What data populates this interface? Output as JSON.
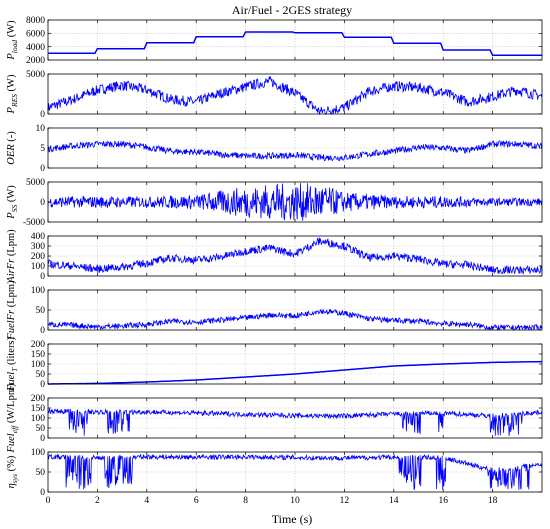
{
  "figure": {
    "title": "Air/Fuel - 2GES strategy",
    "xlabel": "Time (s)"
  },
  "chart_data": [
    {
      "type": "line",
      "ylabel_html": "P<sub>load</sub> (W)",
      "ylabel_main": "P",
      "ylabel_sub": "load",
      "ylabel_unit": " (W)",
      "xlim": [
        0,
        20
      ],
      "ylim": [
        2000,
        8000
      ],
      "yticks": [
        2000,
        4000,
        6000,
        8000
      ],
      "xticks": [
        0,
        2,
        4,
        6,
        8,
        10,
        12,
        14,
        16,
        18
      ],
      "color": "#0000ff",
      "series": [
        {
          "x": [
            0,
            1.9,
            2,
            3.9,
            4,
            5.9,
            6,
            7.9,
            8,
            9.9,
            10,
            11.9,
            12,
            13.9,
            14,
            15.9,
            16,
            17.9,
            18,
            20
          ],
          "y": [
            3000,
            3000,
            3700,
            3700,
            4600,
            4600,
            5500,
            5500,
            6200,
            6200,
            6100,
            6100,
            5400,
            5400,
            4500,
            4500,
            3500,
            3500,
            2700,
            2700
          ]
        }
      ]
    },
    {
      "type": "line",
      "ylabel_main": "P",
      "ylabel_sub": "RES",
      "ylabel_unit": " (W)",
      "xlim": [
        0,
        20
      ],
      "ylim": [
        0,
        5000
      ],
      "yticks": [
        0,
        5000
      ],
      "xticks": [
        0,
        2,
        4,
        6,
        8,
        10,
        12,
        14,
        16,
        18
      ],
      "color": "#0000ff",
      "series": [
        {
          "x": [
            0,
            1,
            2,
            3,
            4,
            5,
            6,
            7,
            8,
            9,
            10,
            11,
            12,
            13,
            14,
            15,
            16,
            17,
            18,
            19,
            20
          ],
          "y": [
            800,
            1800,
            3000,
            3600,
            3000,
            1800,
            1500,
            2600,
            3400,
            4100,
            2600,
            300,
            800,
            2800,
            3500,
            3300,
            2700,
            1500,
            2200,
            3000,
            2200
          ]
        }
      ],
      "noise": 650
    },
    {
      "type": "line",
      "ylabel_main": "OER",
      "ylabel_sub": "",
      "ylabel_unit": " (-)",
      "xlim": [
        0,
        20
      ],
      "ylim": [
        0,
        10
      ],
      "yticks": [
        0,
        5,
        10
      ],
      "xticks": [
        0,
        2,
        4,
        6,
        8,
        10,
        12,
        14,
        16,
        18
      ],
      "color": "#0000ff",
      "series": [
        {
          "x": [
            0,
            1,
            2,
            3,
            4,
            5,
            6,
            7,
            8,
            9,
            10,
            11,
            12,
            13,
            14,
            15,
            16,
            17,
            18,
            19,
            20
          ],
          "y": [
            4.8,
            5.5,
            6.0,
            6.0,
            5.2,
            4.2,
            4.0,
            3.4,
            3.0,
            3.0,
            3.2,
            2.6,
            2.6,
            3.5,
            4.2,
            5.2,
            5.0,
            4.3,
            6.0,
            6.0,
            5.4
          ]
        }
      ],
      "noise": 0.8
    },
    {
      "type": "line",
      "ylabel_main": "P",
      "ylabel_sub": "SS",
      "ylabel_unit": " (W)",
      "xlim": [
        0,
        20
      ],
      "ylim": [
        -5000,
        5000
      ],
      "yticks": [
        -5000,
        0,
        5000
      ],
      "xticks": [
        0,
        2,
        4,
        6,
        8,
        10,
        12,
        14,
        16,
        18
      ],
      "color": "#0000ff",
      "series": [
        {
          "x": [
            0,
            2,
            4,
            6,
            7.5,
            9,
            10,
            11,
            12,
            14,
            16,
            18,
            20
          ],
          "y": [
            0,
            0,
            0,
            0,
            0,
            0,
            0,
            0,
            0,
            0,
            0,
            0,
            0
          ]
        }
      ],
      "noise_profile": {
        "x": [
          0,
          2,
          4,
          6,
          7.5,
          9,
          10,
          11,
          12,
          14,
          16,
          18,
          20
        ],
        "amp": [
          1300,
          1500,
          1400,
          1800,
          3500,
          4500,
          4800,
          4600,
          2500,
          1500,
          1500,
          1000,
          1000
        ]
      }
    },
    {
      "type": "line",
      "ylabel_main": "AirFr",
      "ylabel_sub": "",
      "ylabel_unit": " (Lpm)",
      "xlim": [
        0,
        20
      ],
      "ylim": [
        0,
        400
      ],
      "yticks": [
        0,
        100,
        200,
        300,
        400
      ],
      "xticks": [
        0,
        2,
        4,
        6,
        8,
        10,
        12,
        14,
        16,
        18
      ],
      "color": "#0000ff",
      "series": [
        {
          "x": [
            0,
            1,
            2,
            3,
            4,
            5,
            6,
            7,
            8,
            9,
            10,
            11,
            12,
            13,
            14,
            15,
            16,
            17,
            18,
            19,
            20
          ],
          "y": [
            120,
            100,
            70,
            90,
            130,
            180,
            160,
            190,
            250,
            280,
            220,
            350,
            300,
            180,
            200,
            170,
            120,
            110,
            60,
            60,
            60
          ]
        }
      ],
      "noise": 40
    },
    {
      "type": "line",
      "ylabel_main": "FuelFr",
      "ylabel_sub": "",
      "ylabel_unit": " (Lpm)",
      "xlim": [
        0,
        20
      ],
      "ylim": [
        0,
        100
      ],
      "yticks": [
        0,
        50,
        100
      ],
      "xticks": [
        0,
        2,
        4,
        6,
        8,
        10,
        12,
        14,
        16,
        18
      ],
      "color": "#0000ff",
      "series": [
        {
          "x": [
            0,
            1,
            2,
            3,
            4,
            5,
            6,
            7,
            8,
            9,
            10,
            11,
            12,
            13,
            14,
            15,
            16,
            17,
            18,
            19,
            20
          ],
          "y": [
            14,
            12,
            8,
            10,
            14,
            22,
            20,
            25,
            30,
            38,
            35,
            48,
            42,
            28,
            24,
            22,
            16,
            14,
            6,
            6,
            6
          ]
        }
      ],
      "noise": 7
    },
    {
      "type": "line",
      "ylabel_main": "Fuel",
      "ylabel_sub": "T",
      "ylabel_unit": " (liters)",
      "xlim": [
        0,
        20
      ],
      "ylim": [
        0,
        200
      ],
      "yticks": [
        0,
        50,
        100,
        150,
        200
      ],
      "xticks": [
        0,
        2,
        4,
        6,
        8,
        10,
        12,
        14,
        16,
        18
      ],
      "color": "#0000ff",
      "series": [
        {
          "x": [
            0,
            2,
            4,
            6,
            8,
            10,
            12,
            14,
            16,
            18,
            20
          ],
          "y": [
            0,
            3,
            10,
            20,
            35,
            50,
            70,
            90,
            100,
            108,
            112
          ]
        }
      ]
    },
    {
      "type": "line",
      "ylabel_main": "Fuel",
      "ylabel_sub": "eff",
      "ylabel_unit": " (W/Lpm)",
      "xlim": [
        0,
        20
      ],
      "ylim": [
        0,
        200
      ],
      "yticks": [
        0,
        50,
        100,
        150,
        200
      ],
      "xticks": [
        0,
        2,
        4,
        6,
        8,
        10,
        12,
        14,
        16,
        18
      ],
      "color": "#0000ff",
      "series": [
        {
          "x": [
            0,
            2,
            4,
            6,
            8,
            10,
            12,
            14,
            16,
            18,
            20
          ],
          "y": [
            135,
            130,
            130,
            125,
            118,
            112,
            110,
            120,
            125,
            110,
            130
          ]
        }
      ],
      "dropouts": [
        [
          0.8,
          1.6
        ],
        [
          2.4,
          3.3
        ],
        [
          14.3,
          15.1
        ],
        [
          15.8,
          16.1
        ],
        [
          17.9,
          19.2
        ]
      ],
      "noise": 12
    },
    {
      "type": "line",
      "ylabel_main": "η",
      "ylabel_sub": "sys",
      "ylabel_unit": " (%)",
      "xlim": [
        0,
        20
      ],
      "ylim": [
        0,
        100
      ],
      "yticks": [
        0,
        50,
        100
      ],
      "xticks": [
        0,
        2,
        4,
        6,
        8,
        10,
        12,
        14,
        16,
        18
      ],
      "xticklabels_shown": true,
      "color": "#0000ff",
      "series": [
        {
          "x": [
            0,
            2,
            4,
            6,
            8,
            10,
            12,
            14,
            16,
            18,
            20
          ],
          "y": [
            88,
            85,
            88,
            87,
            88,
            86,
            85,
            87,
            86,
            55,
            70
          ]
        }
      ],
      "dropouts": [
        [
          0.7,
          1.8
        ],
        [
          2.3,
          3.4
        ],
        [
          14.2,
          15.1
        ],
        [
          15.7,
          16.1
        ],
        [
          17.8,
          19.5
        ]
      ],
      "noise": 6
    }
  ]
}
